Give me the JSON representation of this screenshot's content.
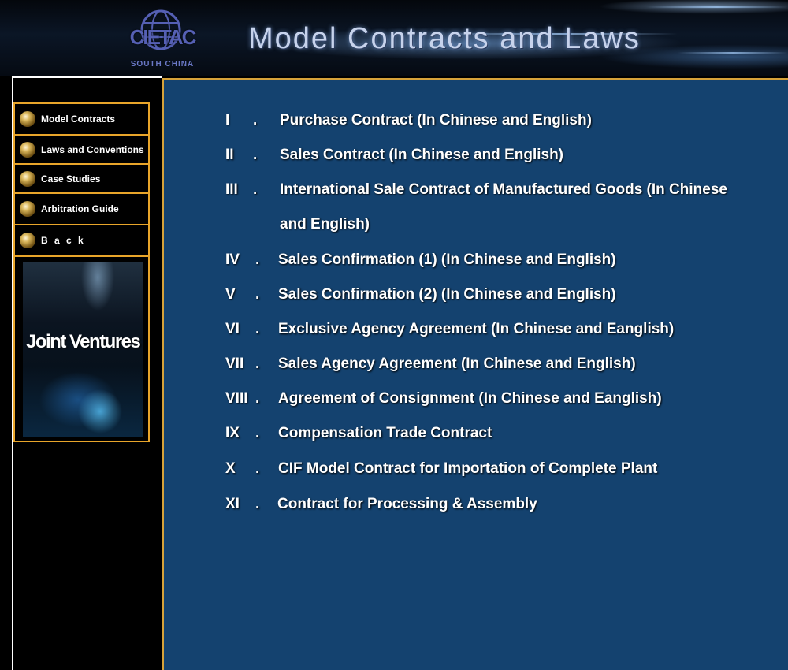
{
  "header": {
    "logo_text": "CIETAC",
    "logo_subtext": "SOUTH CHINA",
    "title": "Model Contracts and Laws"
  },
  "sidebar": {
    "items": [
      {
        "label": "Model Contracts"
      },
      {
        "label": "Laws and Conventions"
      },
      {
        "label": "Case Studies"
      },
      {
        "label": "Arbitration Guide"
      },
      {
        "label": "B a c k"
      }
    ],
    "banner_text": "Joint Ventures"
  },
  "contracts": [
    {
      "num": "I",
      "title": "Purchase Contract (In Chinese and English)"
    },
    {
      "num": "II",
      "title": "Sales Contract (In Chinese and English)"
    },
    {
      "num": "III",
      "title": "International Sale Contract of Manufactured Goods (In Chinese and English)"
    },
    {
      "num": "IV",
      "title": "Sales Confirmation (1) (In Chinese and English)"
    },
    {
      "num": "V",
      "title": "Sales Confirmation (2) (In Chinese and English)"
    },
    {
      "num": "VI",
      "title": "Exclusive Agency Agreement (In Chinese and Eanglish)"
    },
    {
      "num": "VII",
      "title": "Sales Agency Agreement (In Chinese and English)"
    },
    {
      "num": "VIII",
      "title": "Agreement of Consignment (In Chinese and Eanglish)"
    },
    {
      "num": "IX",
      "title": "Compensation Trade Contract"
    },
    {
      "num": "X",
      "title": "CIF Model Contract for Importation of Complete Plant"
    },
    {
      "num": "XI",
      "title": "Contract for Processing & Assembly"
    }
  ],
  "separator": ".",
  "colors": {
    "content_bg": "#14426f",
    "nav_border": "#e8a52a",
    "title_text": "#c7d3ec"
  }
}
